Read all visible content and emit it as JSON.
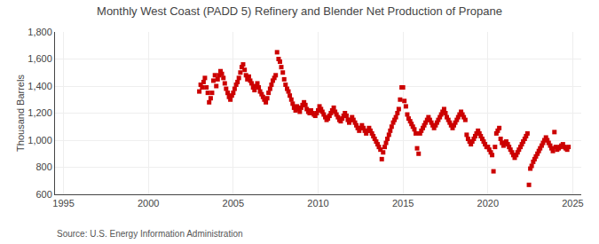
{
  "chart_data": {
    "type": "scatter",
    "title": "Monthly West Coast (PADD 5) Refinery and Blender Net Production of Propane",
    "ylabel": "Thousand Barrels",
    "annotations": [
      "Source: U.S. Energy Information Administration"
    ],
    "color": "#cc0000",
    "marker": "square",
    "grid": true,
    "xlim": [
      1994.5,
      2025.5
    ],
    "ylim": [
      600,
      1800
    ],
    "xticks": [
      1995,
      2000,
      2005,
      2010,
      2015,
      2020,
      2025
    ],
    "yticks": [
      600,
      800,
      {
        "value": 1000,
        "label": "1,000"
      },
      {
        "value": 1200,
        "label": "1,200"
      },
      {
        "value": 1400,
        "label": "1,400"
      },
      {
        "value": 1600,
        "label": "1,600"
      },
      {
        "value": 1800,
        "label": "1,800"
      }
    ],
    "x": [
      2003.0,
      2003.08,
      2003.17,
      2003.25,
      2003.33,
      2003.42,
      2003.5,
      2003.58,
      2003.67,
      2003.75,
      2003.83,
      2003.92,
      2004.0,
      2004.08,
      2004.17,
      2004.25,
      2004.33,
      2004.42,
      2004.5,
      2004.58,
      2004.67,
      2004.75,
      2004.83,
      2004.92,
      2005.0,
      2005.08,
      2005.17,
      2005.25,
      2005.33,
      2005.42,
      2005.5,
      2005.58,
      2005.67,
      2005.75,
      2005.83,
      2005.92,
      2006.0,
      2006.08,
      2006.17,
      2006.25,
      2006.33,
      2006.42,
      2006.5,
      2006.58,
      2006.67,
      2006.75,
      2006.83,
      2006.92,
      2007.0,
      2007.08,
      2007.17,
      2007.25,
      2007.33,
      2007.42,
      2007.5,
      2007.58,
      2007.67,
      2007.75,
      2007.83,
      2007.92,
      2008.0,
      2008.08,
      2008.17,
      2008.25,
      2008.33,
      2008.42,
      2008.5,
      2008.58,
      2008.67,
      2008.75,
      2008.83,
      2008.92,
      2009.0,
      2009.08,
      2009.17,
      2009.25,
      2009.33,
      2009.42,
      2009.5,
      2009.58,
      2009.67,
      2009.75,
      2009.83,
      2009.92,
      2010.0,
      2010.08,
      2010.17,
      2010.25,
      2010.33,
      2010.42,
      2010.5,
      2010.58,
      2010.67,
      2010.75,
      2010.83,
      2010.92,
      2011.0,
      2011.08,
      2011.17,
      2011.25,
      2011.33,
      2011.42,
      2011.5,
      2011.58,
      2011.67,
      2011.75,
      2011.83,
      2011.92,
      2012.0,
      2012.08,
      2012.17,
      2012.25,
      2012.33,
      2012.42,
      2012.5,
      2012.58,
      2012.67,
      2012.75,
      2012.83,
      2012.92,
      2013.0,
      2013.08,
      2013.17,
      2013.25,
      2013.33,
      2013.42,
      2013.5,
      2013.58,
      2013.67,
      2013.75,
      2013.83,
      2013.92,
      2014.0,
      2014.08,
      2014.17,
      2014.25,
      2014.33,
      2014.42,
      2014.5,
      2014.58,
      2014.67,
      2014.75,
      2014.83,
      2014.92,
      2015.0,
      2015.08,
      2015.17,
      2015.25,
      2015.33,
      2015.42,
      2015.5,
      2015.58,
      2015.67,
      2015.75,
      2015.83,
      2015.92,
      2016.0,
      2016.08,
      2016.17,
      2016.25,
      2016.33,
      2016.42,
      2016.5,
      2016.58,
      2016.67,
      2016.75,
      2016.83,
      2016.92,
      2017.0,
      2017.08,
      2017.17,
      2017.25,
      2017.33,
      2017.42,
      2017.5,
      2017.58,
      2017.67,
      2017.75,
      2017.83,
      2017.92,
      2018.0,
      2018.08,
      2018.17,
      2018.25,
      2018.33,
      2018.42,
      2018.5,
      2018.58,
      2018.67,
      2018.75,
      2018.83,
      2018.92,
      2019.0,
      2019.08,
      2019.17,
      2019.25,
      2019.33,
      2019.42,
      2019.5,
      2019.58,
      2019.67,
      2019.75,
      2019.83,
      2019.92,
      2020.0,
      2020.08,
      2020.17,
      2020.25,
      2020.33,
      2020.42,
      2020.5,
      2020.58,
      2020.67,
      2020.75,
      2020.83,
      2020.92,
      2021.0,
      2021.08,
      2021.17,
      2021.25,
      2021.33,
      2021.42,
      2021.5,
      2021.58,
      2021.67,
      2021.75,
      2021.83,
      2021.92,
      2022.0,
      2022.08,
      2022.17,
      2022.25,
      2022.33,
      2022.42,
      2022.5,
      2022.58,
      2022.67,
      2022.75,
      2022.83,
      2022.92,
      2023.0,
      2023.08,
      2023.17,
      2023.25,
      2023.33,
      2023.42,
      2023.5,
      2023.58,
      2023.67,
      2023.75,
      2023.83,
      2023.92,
      2024.0,
      2024.08,
      2024.17,
      2024.25,
      2024.33,
      2024.42,
      2024.5,
      2024.58,
      2024.67,
      2024.75
    ],
    "values": [
      1360,
      1410,
      1390,
      1430,
      1460,
      1390,
      1350,
      1280,
      1310,
      1350,
      1440,
      1480,
      1400,
      1450,
      1480,
      1510,
      1490,
      1460,
      1420,
      1380,
      1350,
      1320,
      1300,
      1330,
      1350,
      1380,
      1410,
      1430,
      1460,
      1500,
      1540,
      1560,
      1520,
      1480,
      1450,
      1470,
      1440,
      1420,
      1390,
      1370,
      1400,
      1420,
      1390,
      1360,
      1340,
      1320,
      1300,
      1280,
      1310,
      1350,
      1380,
      1410,
      1440,
      1460,
      1480,
      1650,
      1600,
      1580,
      1540,
      1500,
      1450,
      1410,
      1380,
      1360,
      1330,
      1300,
      1270,
      1240,
      1220,
      1250,
      1230,
      1210,
      1240,
      1260,
      1280,
      1260,
      1230,
      1210,
      1200,
      1220,
      1200,
      1190,
      1180,
      1200,
      1220,
      1250,
      1230,
      1210,
      1190,
      1170,
      1150,
      1160,
      1180,
      1200,
      1220,
      1240,
      1210,
      1190,
      1170,
      1150,
      1140,
      1160,
      1180,
      1200,
      1180,
      1150,
      1130,
      1150,
      1170,
      1150,
      1130,
      1110,
      1090,
      1070,
      1090,
      1110,
      1090,
      1070,
      1050,
      1070,
      1090,
      1070,
      1050,
      1030,
      1010,
      990,
      970,
      950,
      930,
      860,
      910,
      950,
      980,
      1010,
      1040,
      1070,
      1100,
      1130,
      1150,
      1170,
      1200,
      1230,
      1300,
      1390,
      1390,
      1290,
      1250,
      1190,
      1160,
      1140,
      1120,
      1100,
      1080,
      1050,
      940,
      900,
      1050,
      1070,
      1090,
      1110,
      1130,
      1150,
      1170,
      1150,
      1130,
      1110,
      1090,
      1110,
      1130,
      1150,
      1170,
      1190,
      1210,
      1230,
      1200,
      1170,
      1150,
      1130,
      1110,
      1090,
      1110,
      1130,
      1150,
      1170,
      1190,
      1210,
      1190,
      1170,
      1150,
      1040,
      1010,
      990,
      970,
      990,
      1010,
      1030,
      1050,
      1070,
      1050,
      1030,
      1010,
      990,
      970,
      950,
      950,
      930,
      910,
      890,
      770,
      950,
      1050,
      1070,
      1090,
      1010,
      980,
      960,
      980,
      990,
      970,
      950,
      930,
      910,
      890,
      870,
      890,
      910,
      930,
      950,
      970,
      990,
      1010,
      1030,
      1050,
      670,
      790,
      810,
      840,
      860,
      880,
      900,
      920,
      940,
      960,
      980,
      1000,
      1020,
      1000,
      980,
      960,
      940,
      920,
      1060,
      950,
      930,
      940,
      950,
      960,
      970,
      950,
      940,
      930,
      950
    ]
  }
}
